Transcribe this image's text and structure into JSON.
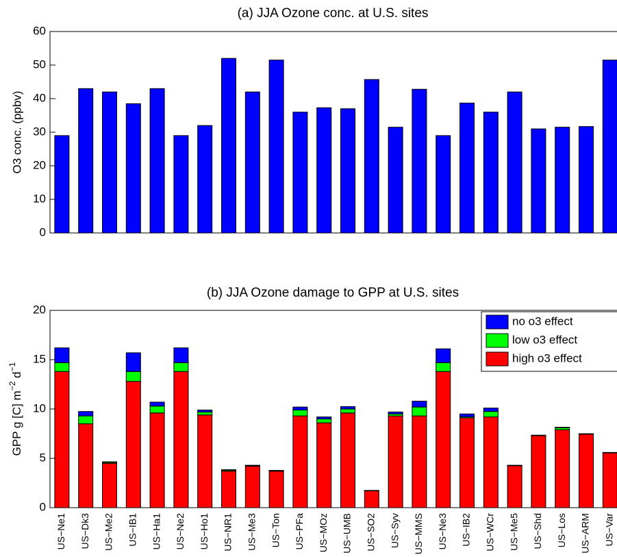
{
  "chart_data": [
    {
      "type": "bar",
      "title": "(a) JJA Ozone conc. at U.S. sites",
      "ylabel": "O3 conc. (ppbv)",
      "values": [
        29,
        43,
        42,
        38.5,
        43,
        29,
        32,
        52,
        42,
        51.5,
        36,
        37.3,
        37,
        45.7,
        31.5,
        42.8,
        29,
        38.7,
        36,
        42,
        31,
        31.5,
        31.7,
        51.5
      ],
      "color": "#0000ff",
      "ylim": [
        0,
        60
      ],
      "yticks": [
        0,
        10,
        20,
        30,
        40,
        50,
        60
      ]
    },
    {
      "type": "stacked_bar",
      "title": "(b) JJA Ozone damage to GPP at U.S. sites",
      "ylabel_parts": [
        "GPP g [C] m",
        "−2",
        " d",
        "−1"
      ],
      "categories": [
        "US−Ne1",
        "US−Dk3",
        "US−Me2",
        "US−IB1",
        "US−Ha1",
        "US−Ne2",
        "US−Ho1",
        "US−NR1",
        "US−Me3",
        "US−Ton",
        "US−PFa",
        "US−MOz",
        "US−UMB",
        "US−SO2",
        "US−Syv",
        "US−MMS",
        "US−Ne3",
        "US−IB2",
        "US−WCr",
        "US−Me5",
        "US−Shd",
        "US−Los",
        "US−ARM",
        "US−Var"
      ],
      "series": [
        {
          "name": "no o3 effect",
          "color": "#0000ff",
          "values": [
            1.5,
            0.45,
            0.05,
            1.9,
            0.4,
            1.5,
            0.2,
            0.05,
            0.05,
            0.03,
            0.3,
            0.2,
            0.25,
            0.02,
            0.2,
            0.6,
            1.4,
            0.3,
            0.35,
            0.02,
            0.02,
            0.05,
            0.02,
            0.02
          ]
        },
        {
          "name": "low o3 effect",
          "color": "#00ff00",
          "values": [
            0.9,
            0.8,
            0.1,
            1.0,
            0.7,
            0.9,
            0.3,
            0.1,
            0.05,
            0.05,
            0.6,
            0.4,
            0.4,
            0.03,
            0.2,
            0.9,
            0.9,
            0.1,
            0.55,
            0.03,
            0.03,
            0.2,
            0.03,
            0.03
          ]
        },
        {
          "name": "high o3 effect",
          "color": "#ff0000",
          "values": [
            13.8,
            8.5,
            4.5,
            12.8,
            9.6,
            13.8,
            9.4,
            3.7,
            4.2,
            3.7,
            9.3,
            8.6,
            9.6,
            1.7,
            9.3,
            9.3,
            13.8,
            9.1,
            9.2,
            4.25,
            7.3,
            7.9,
            7.45,
            5.55
          ]
        }
      ],
      "ylim": [
        0,
        20
      ],
      "yticks": [
        0,
        5,
        10,
        15,
        20
      ],
      "legend": "upper right"
    }
  ]
}
